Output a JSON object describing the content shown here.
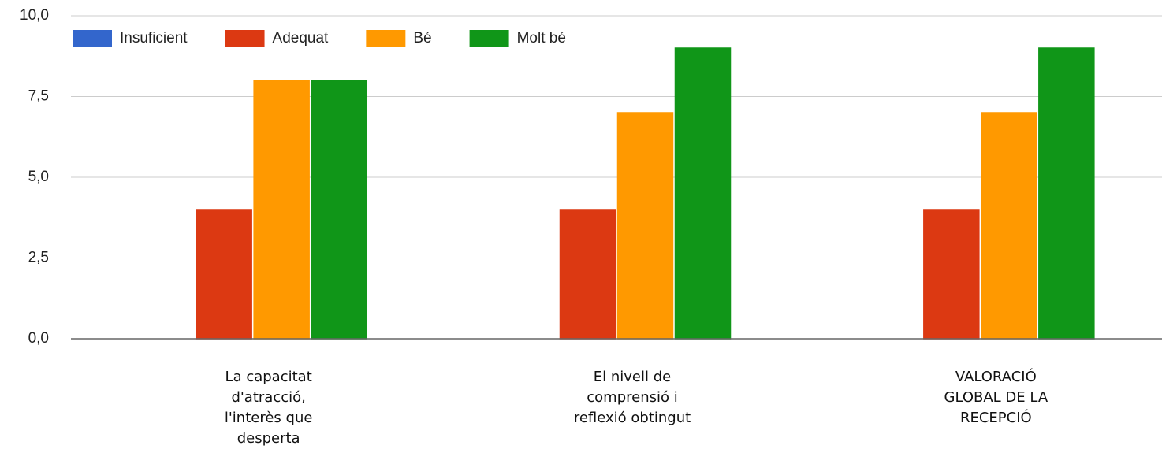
{
  "chart_data": {
    "type": "bar",
    "categories": [
      "La capacitat d'atracció, l'interès que desperta",
      "El nivell de comprensió i reflexió obtingut",
      "VALORACIÓ GLOBAL DE LA RECEPCIÓ"
    ],
    "series": [
      {
        "name": "Insuficient",
        "color": "#3366cc",
        "values": [
          0,
          0,
          0
        ]
      },
      {
        "name": "Adequat",
        "color": "#dc3912",
        "values": [
          4,
          4,
          4
        ]
      },
      {
        "name": "Bé",
        "color": "#ff9900",
        "values": [
          8,
          7,
          7
        ]
      },
      {
        "name": "Molt bé",
        "color": "#109618",
        "values": [
          8,
          9,
          9
        ]
      }
    ],
    "ylim": [
      0,
      10
    ],
    "yticks": [
      {
        "value": 0,
        "label": "0,0"
      },
      {
        "value": 2.5,
        "label": "2,5"
      },
      {
        "value": 5,
        "label": "5,0"
      },
      {
        "value": 7.5,
        "label": "7,5"
      },
      {
        "value": 10,
        "label": "10,0"
      }
    ],
    "grid": true,
    "legend": "top"
  }
}
